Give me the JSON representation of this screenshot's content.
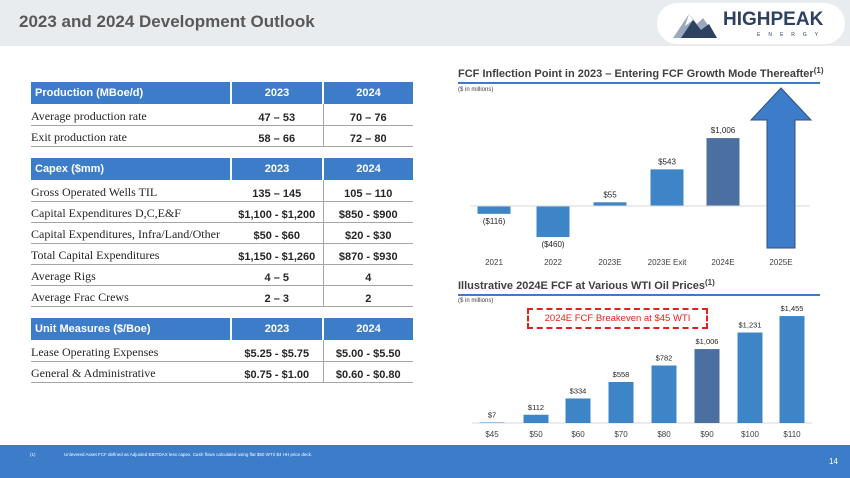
{
  "title": "2023 and 2024 Development Outlook",
  "logo": {
    "brand": "HIGHPEAK",
    "sub": "ENERGY"
  },
  "tables": [
    {
      "header": [
        "Production (MBoe/d)",
        "2023",
        "2024"
      ],
      "rows": [
        [
          "Average production rate",
          "47 – 53",
          "70 – 76"
        ],
        [
          "Exit production rate",
          "58 – 66",
          "72 – 80"
        ]
      ]
    },
    {
      "header": [
        "Capex ($mm)",
        "2023",
        "2024"
      ],
      "rows": [
        [
          "Gross Operated Wells TIL",
          "135 – 145",
          "105 – 110"
        ],
        [
          "Capital Expenditures D,C,E&F",
          "$1,100 - $1,200",
          "$850 - $900"
        ],
        [
          "Capital Expenditures, Infra/Land/Other",
          "$50 - $60",
          "$20 - $30"
        ],
        [
          "Total Capital Expenditures",
          "$1,150 - $1,260",
          "$870 - $930"
        ],
        [
          "Average Rigs",
          "4 – 5",
          "4"
        ],
        [
          "Average Frac Crews",
          "2 – 3",
          "2"
        ]
      ]
    },
    {
      "header": [
        "Unit Measures ($/Boe)",
        "2023",
        "2024"
      ],
      "rows": [
        [
          "Lease Operating Expenses",
          "$5.25 - $5.75",
          "$5.00 - $5.50"
        ],
        [
          "General & Administrative",
          "$0.75 - $1.00",
          "$0.60 - $0.80"
        ]
      ]
    }
  ],
  "chart_data": [
    {
      "type": "bar",
      "title": "FCF Inflection Point in 2023 – Entering FCF Growth Mode Thereafter",
      "title_footnote": "(1)",
      "subtitle": "($ in millions)",
      "categories": [
        "2021",
        "2022",
        "2023E",
        "2023E Exit",
        "2024E",
        "2025E"
      ],
      "values": [
        -116,
        -460,
        55,
        543,
        1006,
        null
      ],
      "data_labels": [
        "($116)",
        "($460)",
        "$55",
        "$543",
        "$1,006",
        ""
      ],
      "highlight_index": 4,
      "annotation": "upward arrow over 2025E",
      "colors": {
        "bar": "#3d85c6",
        "highlight": "#4a6fa0",
        "arrow": "#3d7cc9"
      }
    },
    {
      "type": "bar",
      "title": "Illustrative 2024E FCF at Various WTI Oil Prices",
      "title_footnote": "(1)",
      "subtitle": "($ in millions)",
      "categories": [
        "$45",
        "$50",
        "$60",
        "$70",
        "$80",
        "$90",
        "$100",
        "$110"
      ],
      "values": [
        7,
        112,
        334,
        558,
        782,
        1006,
        1231,
        1455
      ],
      "data_labels": [
        "$7",
        "$112",
        "$334",
        "$558",
        "$782",
        "$1,006",
        "$1,231",
        "$1,455"
      ],
      "highlight_index": 5,
      "annotation": "2024E FCF Breakeven at $45 WTI",
      "colors": {
        "bar": "#3d85c6",
        "highlight": "#4a6fa0",
        "callout": "#e3211c"
      }
    }
  ],
  "footnote": {
    "marker": "(1)",
    "text": "Unlevered Asset FCF defined as Adjusted EBITDAX less capex. Cash flows calculated using flat $90 WTI/ $4 HH price deck."
  },
  "page_number": "14"
}
